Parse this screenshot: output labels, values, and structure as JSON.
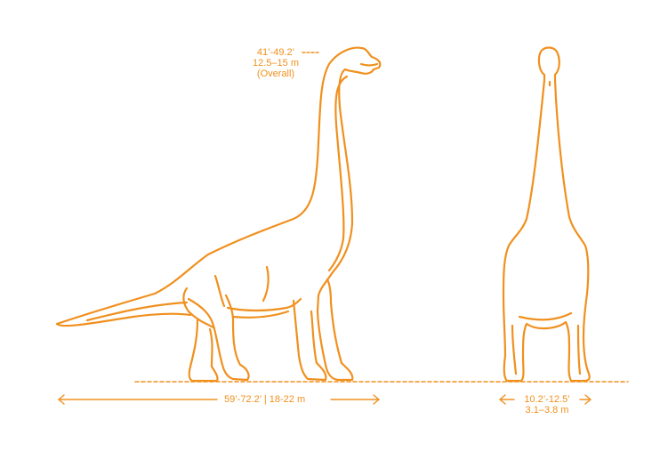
{
  "colors": {
    "line": "#f0901e",
    "background": "#ffffff"
  },
  "height_dimension": {
    "feet": "41’-49.2’",
    "meters": "12.5–15 m",
    "qualifier": "(Overall)"
  },
  "length_dimension": {
    "text": "59’-72.2’ | 18-22 m"
  },
  "width_dimension": {
    "feet": "10.2’-12.5’",
    "meters": "3.1–3.8 m"
  }
}
